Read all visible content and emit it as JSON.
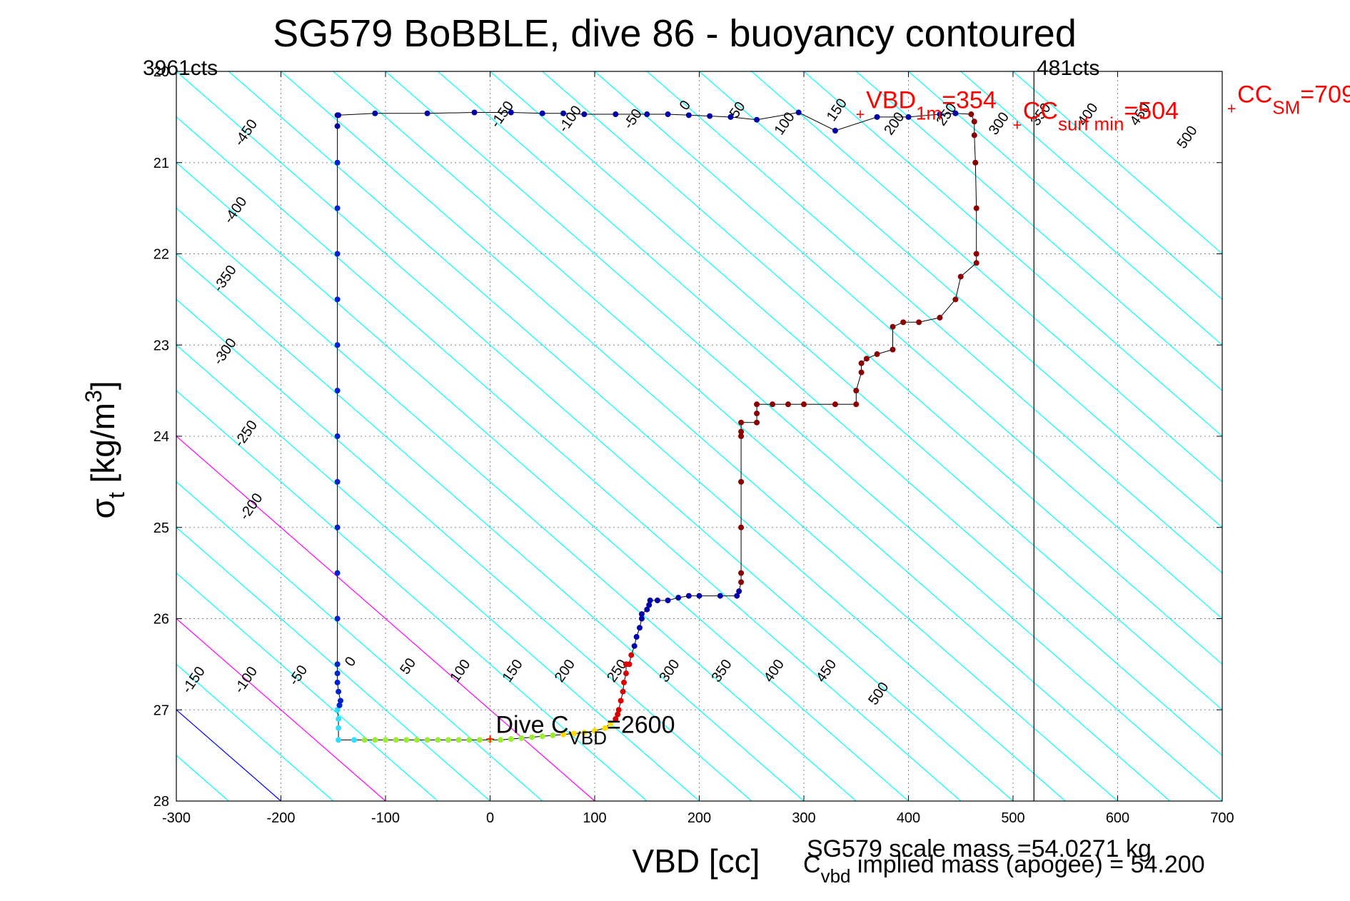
{
  "title": "SG579 BoBBLE, dive 86 - buoyancy contoured",
  "footer": {
    "scale_mass": "SG579 scale mass =54.0271 kg",
    "implied_mass_prefix": "C",
    "implied_mass_sub": "vbd",
    "implied_mass_suffix": " implied mass (apogee) = 54.200"
  },
  "chart_data": {
    "type": "scatter",
    "title": "SG579 BoBBLE, dive 86 - buoyancy contoured",
    "xlabel": "VBD [cc]",
    "ylabel_main": "σ",
    "ylabel_sub": "t",
    "ylabel_rest": " [kg/m",
    "ylabel_sup": "3",
    "ylabel_end": "]",
    "xlim": [
      -300,
      700
    ],
    "ylim": [
      20,
      28
    ],
    "y_reversed": true,
    "grid": true,
    "xticks": [
      -300,
      -200,
      -100,
      0,
      100,
      200,
      300,
      400,
      500,
      600,
      700
    ],
    "yticks": [
      20,
      21,
      22,
      23,
      24,
      25,
      26,
      27,
      28
    ],
    "contour_slope_cc_per_unit": 100,
    "contour_levels": [
      -450,
      -400,
      -350,
      -300,
      -250,
      -200,
      -150,
      -100,
      -50,
      0,
      50,
      100,
      150,
      200,
      250,
      300,
      350,
      400,
      450,
      500
    ],
    "contour_colors": {
      "zero": "#0000ff",
      "magenta_levels": [
        100,
        300
      ],
      "default": "#00ffff"
    },
    "contour_labels_top": [
      {
        "text": "-450",
        "x": -230,
        "y": 20.7
      },
      {
        "text": "-400",
        "x": -240,
        "y": 21.55
      },
      {
        "text": "-350",
        "x": -250,
        "y": 22.3
      },
      {
        "text": "-300",
        "x": -250,
        "y": 23.1
      },
      {
        "text": "-250",
        "x": -230,
        "y": 24.0
      },
      {
        "text": "-200",
        "x": -225,
        "y": 24.8
      },
      {
        "text": "-150",
        "x": 15,
        "y": 20.5
      },
      {
        "text": "-100",
        "x": 80,
        "y": 20.55
      },
      {
        "text": "-50",
        "x": 140,
        "y": 20.55
      },
      {
        "text": "0",
        "x": 190,
        "y": 20.4
      },
      {
        "text": "50",
        "x": 240,
        "y": 20.45
      },
      {
        "text": "100",
        "x": 285,
        "y": 20.6
      },
      {
        "text": "150",
        "x": 335,
        "y": 20.45
      },
      {
        "text": "200",
        "x": 390,
        "y": 20.6
      },
      {
        "text": "250",
        "x": 440,
        "y": 20.5
      },
      {
        "text": "300",
        "x": 490,
        "y": 20.6
      },
      {
        "text": "350",
        "x": 530,
        "y": 20.5
      },
      {
        "text": "400",
        "x": 575,
        "y": 20.5
      },
      {
        "text": "450",
        "x": 625,
        "y": 20.5
      },
      {
        "text": "500",
        "x": 670,
        "y": 20.75
      }
    ],
    "contour_labels_bottom": [
      {
        "text": "-150",
        "x": -280,
        "y": 26.7
      },
      {
        "text": "-100",
        "x": -230,
        "y": 26.7
      },
      {
        "text": "-50",
        "x": -180,
        "y": 26.65
      },
      {
        "text": "0",
        "x": -130,
        "y": 26.5
      },
      {
        "text": "50",
        "x": -75,
        "y": 26.55
      },
      {
        "text": "100",
        "x": -25,
        "y": 26.6
      },
      {
        "text": "150",
        "x": 25,
        "y": 26.6
      },
      {
        "text": "200",
        "x": 75,
        "y": 26.6
      },
      {
        "text": "250",
        "x": 125,
        "y": 26.6
      },
      {
        "text": "300",
        "x": 175,
        "y": 26.6
      },
      {
        "text": "350",
        "x": 225,
        "y": 26.6
      },
      {
        "text": "400",
        "x": 275,
        "y": 26.6
      },
      {
        "text": "450",
        "x": 325,
        "y": 26.6
      },
      {
        "text": "500",
        "x": 375,
        "y": 26.85
      }
    ],
    "vertical_line_x": 520,
    "cts_labels": {
      "left": "3961cts",
      "right": "481cts"
    },
    "dive_points": [
      [
        -145,
        20.48
      ],
      [
        -110,
        20.46
      ],
      [
        -60,
        20.46
      ],
      [
        -15,
        20.45
      ],
      [
        20,
        20.45
      ],
      [
        50,
        20.46
      ],
      [
        70,
        20.46
      ],
      [
        90,
        20.47
      ],
      [
        120,
        20.47
      ],
      [
        150,
        20.47
      ],
      [
        170,
        20.47
      ],
      [
        190,
        20.48
      ],
      [
        210,
        20.49
      ],
      [
        230,
        20.5
      ],
      [
        255,
        20.53
      ],
      [
        295,
        20.45
      ],
      [
        330,
        20.65
      ],
      [
        370,
        20.5
      ],
      [
        400,
        20.5
      ],
      [
        430,
        20.47
      ],
      [
        445,
        20.46
      ],
      [
        460,
        20.47
      ],
      [
        463,
        20.55
      ],
      [
        463,
        20.7
      ],
      [
        464,
        21.0
      ],
      [
        465,
        21.5
      ],
      [
        465,
        22.0
      ],
      [
        465,
        22.1
      ],
      [
        450,
        22.25
      ],
      [
        445,
        22.5
      ],
      [
        430,
        22.7
      ],
      [
        410,
        22.75
      ],
      [
        395,
        22.75
      ],
      [
        385,
        22.8
      ],
      [
        385,
        23.05
      ],
      [
        370,
        23.1
      ],
      [
        360,
        23.15
      ],
      [
        355,
        23.2
      ],
      [
        355,
        23.3
      ],
      [
        350,
        23.5
      ],
      [
        350,
        23.65
      ],
      [
        330,
        23.65
      ],
      [
        300,
        23.65
      ],
      [
        285,
        23.65
      ],
      [
        270,
        23.65
      ],
      [
        255,
        23.65
      ],
      [
        255,
        23.75
      ],
      [
        255,
        23.85
      ],
      [
        240,
        23.85
      ],
      [
        240,
        23.95
      ],
      [
        240,
        24.0
      ],
      [
        240,
        24.5
      ],
      [
        240,
        25.0
      ],
      [
        240,
        25.5
      ],
      [
        240,
        25.6
      ],
      [
        238,
        25.7
      ],
      [
        236,
        25.75
      ],
      [
        220,
        25.75
      ],
      [
        200,
        25.75
      ],
      [
        190,
        25.75
      ],
      [
        180,
        25.77
      ],
      [
        170,
        25.8
      ],
      [
        160,
        25.8
      ],
      [
        153,
        25.8
      ],
      [
        152,
        25.85
      ],
      [
        150,
        25.9
      ],
      [
        145,
        25.95
      ],
      [
        145,
        26.0
      ],
      [
        143,
        26.1
      ],
      [
        140,
        26.2
      ],
      [
        138,
        26.3
      ],
      [
        135,
        26.4
      ],
      [
        133,
        26.5
      ],
      [
        130,
        26.5
      ],
      [
        130,
        26.6
      ],
      [
        128,
        26.7
      ],
      [
        127,
        26.8
      ],
      [
        125,
        26.9
      ],
      [
        123,
        27.0
      ],
      [
        122,
        27.05
      ],
      [
        120,
        27.1
      ],
      [
        115,
        27.15
      ],
      [
        110,
        27.2
      ],
      [
        100,
        27.23
      ],
      [
        90,
        27.25
      ],
      [
        80,
        27.26
      ],
      [
        70,
        27.27
      ],
      [
        60,
        27.28
      ],
      [
        50,
        27.29
      ],
      [
        40,
        27.3
      ],
      [
        30,
        27.31
      ],
      [
        20,
        27.32
      ],
      [
        10,
        27.33
      ],
      [
        0,
        27.33
      ],
      [
        -10,
        27.33
      ],
      [
        -20,
        27.33
      ],
      [
        -30,
        27.33
      ],
      [
        -40,
        27.33
      ],
      [
        -50,
        27.33
      ],
      [
        -60,
        27.33
      ],
      [
        -70,
        27.33
      ],
      [
        -80,
        27.33
      ],
      [
        -90,
        27.33
      ],
      [
        -100,
        27.33
      ],
      [
        -110,
        27.33
      ],
      [
        -120,
        27.33
      ],
      [
        -130,
        27.33
      ],
      [
        -145,
        27.33
      ],
      [
        -145,
        27.2
      ],
      [
        -145,
        27.1
      ],
      [
        -146,
        27.0
      ],
      [
        -144,
        26.95
      ],
      [
        -143,
        26.9
      ],
      [
        -145,
        26.8
      ],
      [
        -146,
        26.7
      ],
      [
        -146,
        26.6
      ],
      [
        -146,
        26.5
      ],
      [
        -146,
        26.0
      ],
      [
        -146,
        25.5
      ],
      [
        -146,
        25.0
      ],
      [
        -146,
        24.5
      ],
      [
        -146,
        24.0
      ],
      [
        -146,
        23.5
      ],
      [
        -146,
        23.0
      ],
      [
        -146,
        22.5
      ],
      [
        -146,
        22.0
      ],
      [
        -146,
        21.5
      ],
      [
        -146,
        21.0
      ],
      [
        -146,
        20.6
      ],
      [
        -146,
        20.48
      ]
    ],
    "annotations": [
      {
        "text": "VBD",
        "sub": "1m",
        "rest": "=354",
        "x": 354,
        "y": 20.48,
        "color": "#ff0000",
        "marker": true
      },
      {
        "text": "CC",
        "sub": "surf min",
        "rest": "=504",
        "x": 504,
        "y": 20.6,
        "color": "#ff0000",
        "marker": true
      },
      {
        "text": "CC",
        "sub": "SM",
        "rest": "=709",
        "x": 709,
        "y": 20.42,
        "color": "#ff0000",
        "marker": true
      },
      {
        "text": "Dive C",
        "sub": "VBD",
        "rest": "=2600",
        "x": 0,
        "y": 27.33,
        "color": "#000000",
        "marker": true
      }
    ]
  }
}
